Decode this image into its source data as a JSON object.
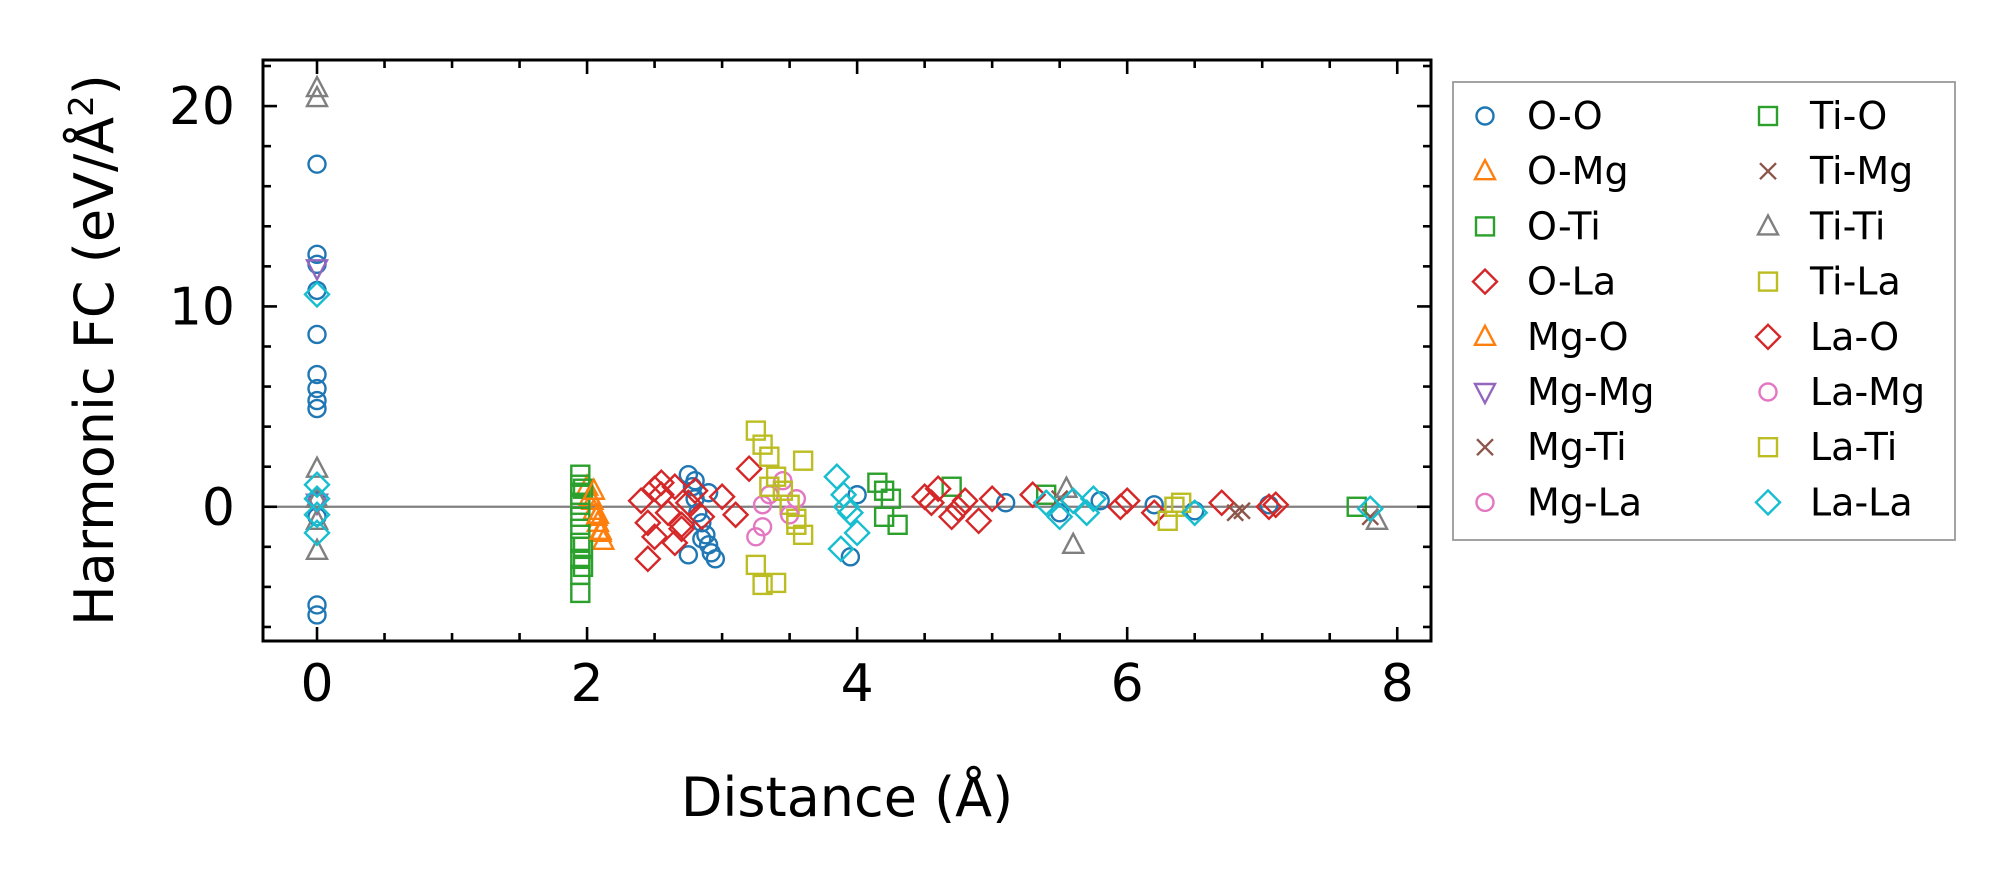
{
  "chart_data": {
    "type": "scatter",
    "title": "",
    "xlabel": "Distance (Å)",
    "ylabel": "Harmonic FC (eV/Å²)",
    "ylabel_parts": {
      "main": "Harmonic FC (eV/Å",
      "sup": "2",
      "tail": ")"
    },
    "xlim": [
      -0.4,
      8.25
    ],
    "ylim": [
      -6.7,
      22.3
    ],
    "xticks": [
      0,
      2,
      4,
      6,
      8
    ],
    "xtick_labels": [
      "0",
      "2",
      "4",
      "6",
      "8"
    ],
    "yticks": [
      0,
      10,
      20
    ],
    "ytick_labels": [
      "0",
      "10",
      "20"
    ],
    "legend_position": "outside-right",
    "series": [
      {
        "name": "O-O",
        "color": "#1f77b4",
        "marker": "circle",
        "x": [
          0,
          0,
          0,
          0,
          0,
          0,
          0,
          0,
          0,
          0,
          0,
          0,
          0,
          2.75,
          2.78,
          2.8,
          2.82,
          2.85,
          2.88,
          2.9,
          2.92,
          2.95,
          2.75,
          2.8,
          2.85,
          2.9,
          3.95,
          4.0,
          5.1,
          5.5,
          5.8,
          6.2,
          6.5,
          7.05
        ],
        "y": [
          17.1,
          12.6,
          12.1,
          10.8,
          8.6,
          6.6,
          5.9,
          5.3,
          4.9,
          0.3,
          -0.5,
          -4.9,
          -5.4,
          1.6,
          1.0,
          0.4,
          -0.3,
          -0.8,
          -1.4,
          -1.9,
          -2.3,
          -2.6,
          -2.4,
          1.3,
          -1.6,
          0.7,
          -2.5,
          0.6,
          0.2,
          -0.3,
          0.3,
          0.1,
          -0.2,
          0.1
        ]
      },
      {
        "name": "O-Mg",
        "color": "#ff7f0e",
        "marker": "triangle-up",
        "x": [
          2.0,
          2.02,
          2.05,
          2.08,
          2.1,
          2.12,
          2.04,
          2.07
        ],
        "y": [
          1.0,
          0.5,
          -0.2,
          -0.8,
          -1.3,
          -1.7,
          0.3,
          -0.5
        ]
      },
      {
        "name": "O-Ti",
        "color": "#2ca02c",
        "marker": "square",
        "x": [
          1.95,
          1.95,
          1.95,
          1.95,
          1.95,
          1.95,
          1.95,
          1.95,
          1.95,
          1.95,
          1.97,
          1.97,
          4.15,
          4.2,
          4.25,
          4.7,
          5.4
        ],
        "y": [
          1.6,
          1.1,
          0.6,
          0.1,
          -0.5,
          -1.1,
          -1.8,
          -2.6,
          -3.4,
          -4.3,
          -2.0,
          0.9,
          1.2,
          -0.5,
          0.4,
          1.0,
          0.6
        ]
      },
      {
        "name": "O-La",
        "color": "#d62728",
        "marker": "diamond",
        "x": [
          2.4,
          2.45,
          2.5,
          2.55,
          2.6,
          2.65,
          2.7,
          2.75,
          2.8,
          2.85,
          2.45,
          2.55,
          2.65,
          3.0,
          3.1,
          3.2,
          4.5,
          4.6,
          4.7,
          4.8,
          4.9,
          5.0,
          5.3,
          6.0,
          6.2,
          6.7,
          7.1
        ],
        "y": [
          0.3,
          -0.8,
          -1.5,
          0.6,
          -0.3,
          1.0,
          -0.9,
          0.2,
          0.8,
          -0.5,
          -2.6,
          1.2,
          -1.8,
          0.5,
          -0.4,
          1.9,
          0.5,
          0.9,
          -0.5,
          0.3,
          -0.7,
          0.4,
          0.6,
          0.3,
          -0.3,
          0.2,
          0.1
        ]
      },
      {
        "name": "Mg-O",
        "color": "#ff7f0e",
        "marker": "triangle-up",
        "x": [
          2.05,
          2.08,
          2.1
        ],
        "y": [
          0.8,
          -0.4,
          -1.2
        ]
      },
      {
        "name": "Mg-Mg",
        "color": "#9467bd",
        "marker": "triangle-down",
        "x": [
          0,
          0
        ],
        "y": [
          11.9,
          0.2
        ]
      },
      {
        "name": "Mg-Ti",
        "color": "#8c564b",
        "marker": "x",
        "x": [
          6.85,
          7.8
        ],
        "y": [
          -0.2,
          -0.5
        ]
      },
      {
        "name": "Mg-La",
        "color": "#e377c2",
        "marker": "circle",
        "x": [
          3.25,
          3.35,
          3.45,
          3.55,
          3.3
        ],
        "y": [
          -1.5,
          0.6,
          1.3,
          0.4,
          -1.0
        ]
      },
      {
        "name": "Ti-O",
        "color": "#2ca02c",
        "marker": "square",
        "x": [
          1.97,
          4.2,
          4.3,
          7.7
        ],
        "y": [
          -3.0,
          0.8,
          -0.9,
          0.0
        ]
      },
      {
        "name": "Ti-Mg",
        "color": "#8c564b",
        "marker": "x",
        "x": [
          5.5,
          6.8
        ],
        "y": [
          0.4,
          -0.3
        ]
      },
      {
        "name": "Ti-Ti",
        "color": "#7f7f7f",
        "marker": "triangle-up",
        "x": [
          0,
          0,
          0,
          0,
          0,
          0,
          5.55,
          5.6,
          7.85
        ],
        "y": [
          20.9,
          20.4,
          1.9,
          0.4,
          -0.7,
          -2.2,
          0.9,
          -1.9,
          -0.7
        ]
      },
      {
        "name": "Ti-La",
        "color": "#bcbd22",
        "marker": "square",
        "x": [
          3.25,
          3.3,
          3.35,
          3.4,
          3.45,
          3.5,
          3.55,
          3.6,
          3.25,
          3.3,
          3.4,
          3.6,
          6.3,
          6.4
        ],
        "y": [
          3.8,
          3.1,
          2.5,
          1.5,
          0.8,
          0.1,
          -0.6,
          -1.4,
          -2.9,
          -3.9,
          -3.8,
          2.3,
          -0.7,
          0.2
        ]
      },
      {
        "name": "La-O",
        "color": "#d62728",
        "marker": "diamond",
        "x": [
          2.5,
          2.7,
          4.55,
          4.75,
          5.95,
          7.05
        ],
        "y": [
          0.9,
          -1.1,
          0.2,
          -0.1,
          0.0,
          0.0
        ]
      },
      {
        "name": "La-Mg",
        "color": "#e377c2",
        "marker": "circle",
        "x": [
          3.3,
          3.5
        ],
        "y": [
          0.1,
          -0.4
        ]
      },
      {
        "name": "La-Ti",
        "color": "#bcbd22",
        "marker": "square",
        "x": [
          3.35,
          3.55,
          6.35
        ],
        "y": [
          1.0,
          -0.9,
          0.0
        ]
      },
      {
        "name": "La-La",
        "color": "#17becf",
        "marker": "diamond",
        "x": [
          0,
          0,
          0,
          0,
          0,
          3.85,
          3.9,
          3.95,
          4.0,
          3.88,
          3.92,
          5.4,
          5.5,
          5.6,
          5.7,
          5.75,
          6.5,
          7.8
        ],
        "y": [
          10.6,
          1.1,
          0.4,
          -0.4,
          -1.3,
          1.5,
          0.6,
          -0.3,
          -1.3,
          -2.1,
          0.0,
          0.2,
          -0.5,
          0.3,
          -0.3,
          0.4,
          -0.3,
          -0.1
        ]
      }
    ]
  }
}
